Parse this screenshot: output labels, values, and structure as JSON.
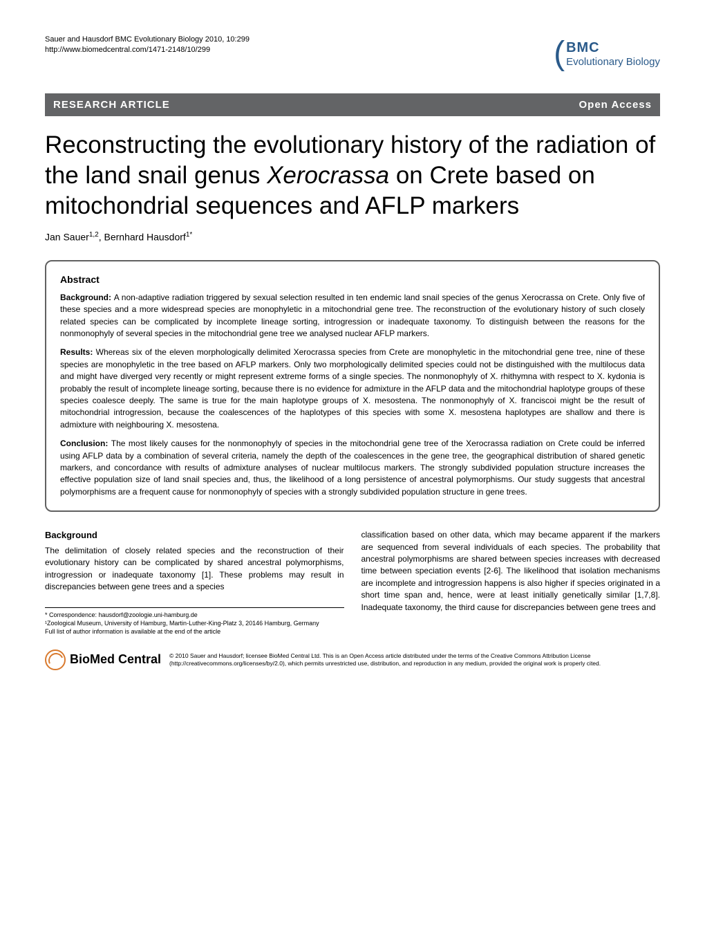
{
  "header": {
    "citation": "Sauer and Hausdorf BMC Evolutionary Biology 2010, 10:299",
    "url": "http://www.biomedcentral.com/1471-2148/10/299",
    "logo_bmc": "BMC",
    "logo_journal": "Evolutionary Biology"
  },
  "banner": {
    "left": "RESEARCH ARTICLE",
    "right": "Open Access"
  },
  "title_parts": {
    "t1": "Reconstructing the evolutionary history of the radiation of the land snail genus ",
    "t2": "Xerocrassa",
    "t3": " on Crete based on mitochondrial sequences and AFLP markers"
  },
  "authors": {
    "a1": "Jan Sauer",
    "a1_sup": "1,2",
    "sep": ", ",
    "a2": "Bernhard Hausdorf",
    "a2_sup": "1*"
  },
  "abstract": {
    "heading": "Abstract",
    "background_label": "Background: ",
    "background": "A non-adaptive radiation triggered by sexual selection resulted in ten endemic land snail species of the genus Xerocrassa on Crete. Only five of these species and a more widespread species are monophyletic in a mitochondrial gene tree. The reconstruction of the evolutionary history of such closely related species can be complicated by incomplete lineage sorting, introgression or inadequate taxonomy. To distinguish between the reasons for the nonmonophyly of several species in the mitochondrial gene tree we analysed nuclear AFLP markers.",
    "results_label": "Results: ",
    "results": "Whereas six of the eleven morphologically delimited Xerocrassa species from Crete are monophyletic in the mitochondrial gene tree, nine of these species are monophyletic in the tree based on AFLP markers. Only two morphologically delimited species could not be distinguished with the multilocus data and might have diverged very recently or might represent extreme forms of a single species. The nonmonophyly of X. rhithymna with respect to X. kydonia is probably the result of incomplete lineage sorting, because there is no evidence for admixture in the AFLP data and the mitochondrial haplotype groups of these species coalesce deeply. The same is true for the main haplotype groups of X. mesostena. The nonmonophyly of X. franciscoi might be the result of mitochondrial introgression, because the coalescences of the haplotypes of this species with some X. mesostena haplotypes are shallow and there is admixture with neighbouring X. mesostena.",
    "conclusion_label": "Conclusion: ",
    "conclusion": "The most likely causes for the nonmonophyly of species in the mitochondrial gene tree of the Xerocrassa radiation on Crete could be inferred using AFLP data by a combination of several criteria, namely the depth of the coalescences in the gene tree, the geographical distribution of shared genetic markers, and concordance with results of admixture analyses of nuclear multilocus markers. The strongly subdivided population structure increases the effective population size of land snail species and, thus, the likelihood of a long persistence of ancestral polymorphisms. Our study suggests that ancestral polymorphisms are a frequent cause for nonmonophyly of species with a strongly subdivided population structure in gene trees."
  },
  "body": {
    "background_heading": "Background",
    "col1": "The delimitation of closely related species and the reconstruction of their evolutionary history can be complicated by shared ancestral polymorphisms, introgression or inadequate taxonomy [1]. These problems may result in discrepancies between gene trees and a species",
    "col2": "classification based on other data, which may became apparent if the markers are sequenced from several individuals of each species. The probability that ancestral polymorphisms are shared between species increases with decreased time between speciation events [2-6]. The likelihood that isolation mechanisms are incomplete and introgression happens is also higher if species originated in a short time span and, hence, were at least initially genetically similar [1,7,8]. Inadequate taxonomy, the third cause for discrepancies between gene trees and"
  },
  "footnotes": {
    "correspondence": "* Correspondence: hausdorf@zoologie.uni-hamburg.de",
    "affiliation": "¹Zoological Museum, University of Hamburg, Martin-Luther-King-Platz 3, 20146 Hamburg, Germany",
    "full_list": "Full list of author information is available at the end of the article"
  },
  "footer": {
    "bmc_logo": "BioMed Central",
    "copyright": "© 2010 Sauer and Hausdorf; licensee BioMed Central Ltd. This is an Open Access article distributed under the terms of the Creative Commons Attribution License (http://creativecommons.org/licenses/by/2.0), which permits unrestricted use, distribution, and reproduction in any medium, provided the original work is properly cited."
  },
  "colors": {
    "banner_bg": "#636466",
    "logo_color": "#2a5a8a",
    "border_color": "#606060",
    "bmc_orange": "#d97a2e"
  }
}
